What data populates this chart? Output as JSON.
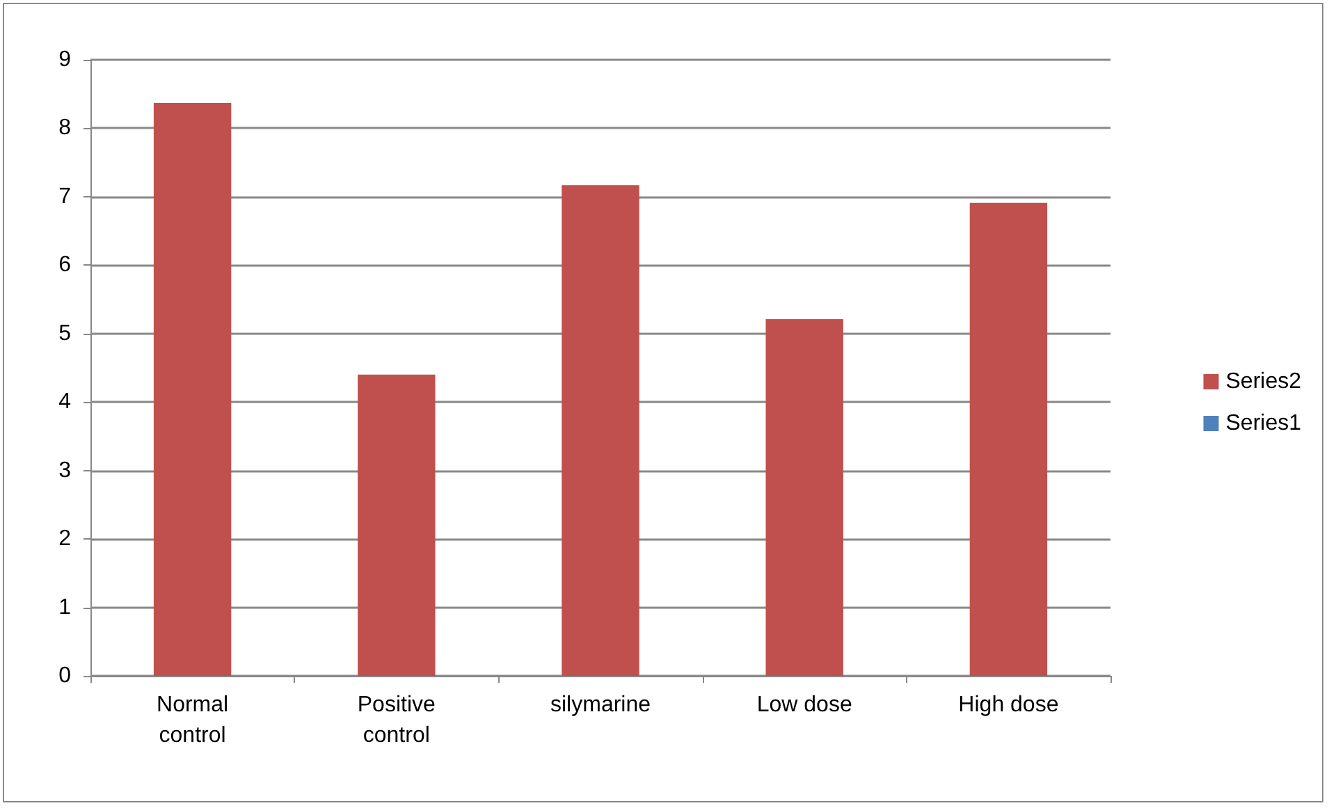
{
  "chart_data": {
    "type": "bar",
    "categories": [
      "Normal\ncontrol",
      "Positive\ncontrol",
      "silymarine",
      "Low dose",
      "High dose"
    ],
    "series": [
      {
        "name": "Series1",
        "color": "#4f81bd",
        "values": [
          null,
          null,
          null,
          null,
          null
        ]
      },
      {
        "name": "Series2",
        "color": "#c0504d",
        "values": [
          8.37,
          4.4,
          7.17,
          5.21,
          6.91
        ]
      }
    ],
    "stacked": true,
    "ylim": [
      0,
      9
    ],
    "yticks": [
      0,
      1,
      2,
      3,
      4,
      5,
      6,
      7,
      8,
      9
    ],
    "grid": "y",
    "legend": "right"
  }
}
